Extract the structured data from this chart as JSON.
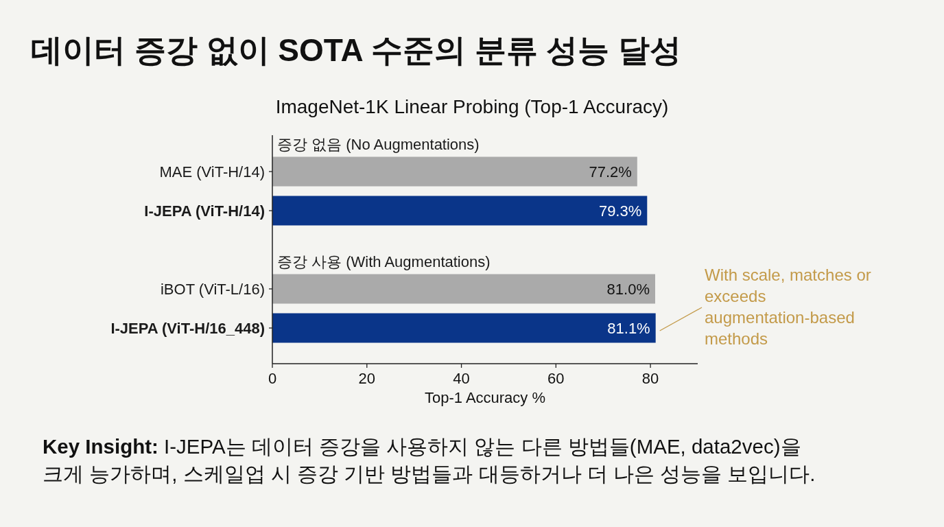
{
  "chart_data": {
    "type": "bar",
    "orientation": "horizontal",
    "title": "데이터 증강 없이 SOTA 수준의 분류 성능 달성",
    "subtitle": "ImageNet-1K Linear Probing (Top-1 Accuracy)",
    "xlabel": "Top-1 Accuracy %",
    "categories": [
      null,
      "MAE (ViT-H/14)",
      "I-JEPA (ViT-H/14)",
      null,
      "iBOT (ViT-L/16)",
      "I-JEPA (ViT-H/16_448)"
    ],
    "values": [
      null,
      77.2,
      79.3,
      null,
      81.0,
      81.1
    ],
    "colors": [
      null,
      "#aaaaaa",
      "#0a3589",
      null,
      "#aaaaaa",
      "#0a3589"
    ],
    "value_labels": [
      null,
      "77.2%",
      "79.3%",
      null,
      "81.0%",
      "81.1%"
    ],
    "xlim": [
      0,
      90
    ],
    "xticks": [
      0,
      20,
      40,
      60,
      80
    ],
    "annotations": [
      "증강 없음 (No Augmentations)",
      "증강 사용 (With Augmentations)",
      {
        "text": "With scale, matches or exceeds augmentation-based methods",
        "x": 81.1,
        "y": "I-JEPA (ViT-H/16_448)"
      },
      "Key Insight: I-JEPA는 데이터 증강을 사용하지 않는 다른 방법들(MAE, data2vec)을 크게 능가하며, 스케일업 시 증강 기반 방법들과 대등하거나 더 나은 성능을 보입니다."
    ]
  }
}
